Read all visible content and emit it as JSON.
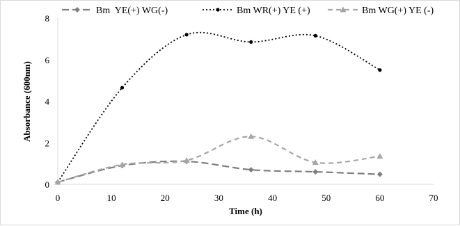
{
  "chart_data": {
    "type": "line",
    "xlabel": "Time (h)",
    "ylabel": "Absorbance (600nm)",
    "xlim": [
      0,
      70
    ],
    "ylim": [
      0,
      8
    ],
    "x_ticks": [
      "0",
      "10",
      "20",
      "30",
      "40",
      "50",
      "60",
      "70"
    ],
    "y_ticks": [
      "0",
      "2",
      "4",
      "6",
      "8"
    ],
    "grid": false,
    "legend_position": "top",
    "smooth": true,
    "series": [
      {
        "name": "Bm  YE(+) WG(-)",
        "color": "#7f7f7f",
        "line_style": "long-dash",
        "marker": "diamond",
        "x": [
          0,
          12,
          24,
          36,
          48,
          60
        ],
        "y": [
          0.1,
          0.9,
          1.1,
          0.7,
          0.6,
          0.48
        ]
      },
      {
        "name": "Bm WR(+) YE (+)",
        "color": "#000000",
        "line_style": "dotted",
        "marker": "circle",
        "x": [
          0,
          12,
          24,
          36,
          48,
          60
        ],
        "y": [
          0.1,
          4.65,
          7.2,
          6.85,
          7.15,
          5.5
        ]
      },
      {
        "name": "Bm WG(+) YE (-)",
        "color": "#a6a6a6",
        "line_style": "dash",
        "marker": "triangle",
        "x": [
          0,
          12,
          24,
          36,
          48,
          60
        ],
        "y": [
          0.1,
          0.95,
          1.15,
          2.3,
          1.05,
          1.35
        ]
      }
    ]
  }
}
